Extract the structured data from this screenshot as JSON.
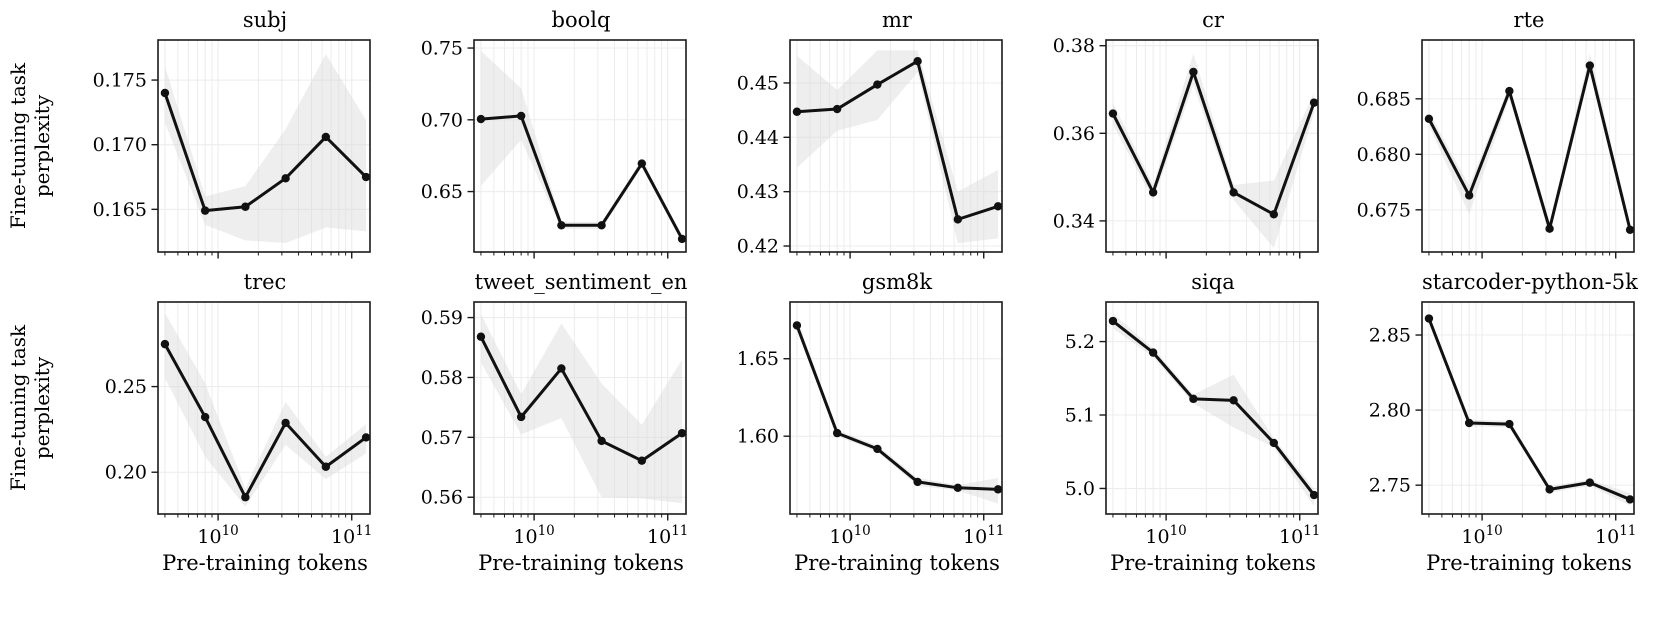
{
  "chart_data": {
    "type": "line",
    "x_label": "Pre-training tokens",
    "y_label": "Fine-tuning task perplexity",
    "y_label_lines": [
      "Fine-tuning task",
      "perplexity"
    ],
    "x_scale": "log",
    "grid": true,
    "x": [
      4000000000.0,
      8000000000.0,
      16000000000.0,
      32000000000.0,
      64000000000.0,
      128000000000.0
    ],
    "xlim": [
      3550000000.0,
      137000000000.0
    ],
    "xtick_labels": [
      {
        "value": 10000000000.0,
        "base": "10",
        "exp": "10"
      },
      {
        "value": 100000000000.0,
        "base": "10",
        "exp": "11"
      }
    ],
    "colors": {
      "line": "#111111",
      "marker": "#111111",
      "band": "#d9d9d9",
      "grid": "#ececec",
      "spine": "#1a1a1a",
      "text": "#000000",
      "background": "#ffffff"
    },
    "charts": [
      {
        "title": "subj",
        "values": [
          0.174,
          0.1649,
          0.1652,
          0.1674,
          0.1706,
          0.1675
        ],
        "band_upper": [
          0.1761,
          0.166,
          0.1668,
          0.1712,
          0.177,
          0.1719
        ],
        "band_lower": [
          0.1717,
          0.1638,
          0.1626,
          0.1624,
          0.1636,
          0.1633
        ],
        "yticks": [
          "0.165",
          "0.170",
          "0.175"
        ],
        "ylim": [
          0.1617,
          0.1781
        ],
        "show_x_tick_labels": false
      },
      {
        "title": "boolq",
        "values": [
          0.7005,
          0.7027,
          0.6265,
          0.6265,
          0.6695,
          0.617
        ],
        "band_upper": [
          0.748,
          0.722,
          0.629,
          0.629,
          0.672,
          0.619
        ],
        "band_lower": [
          0.654,
          0.686,
          0.624,
          0.624,
          0.667,
          0.615
        ],
        "yticks": [
          "0.65",
          "0.70",
          "0.75"
        ],
        "ylim": [
          0.6079,
          0.7556
        ],
        "show_x_tick_labels": false
      },
      {
        "title": "mr",
        "values": [
          0.4447,
          0.4452,
          0.4497,
          0.454,
          0.4249,
          0.4273
        ],
        "band_upper": [
          0.455,
          0.4487,
          0.456,
          0.456,
          0.43,
          0.434
        ],
        "band_lower": [
          0.4344,
          0.4412,
          0.4432,
          0.452,
          0.4205,
          0.4214
        ],
        "yticks": [
          "0.42",
          "0.43",
          "0.44",
          "0.45"
        ],
        "ylim": [
          0.4189,
          0.4579
        ],
        "show_x_tick_labels": false
      },
      {
        "title": "cr",
        "values": [
          0.3645,
          0.3465,
          0.374,
          0.3465,
          0.3415,
          0.367
        ],
        "band_upper": [
          0.367,
          0.3482,
          0.3782,
          0.3482,
          0.3492,
          0.3692
        ],
        "band_lower": [
          0.362,
          0.3448,
          0.371,
          0.3448,
          0.3338,
          0.3648
        ],
        "yticks": [
          "0.34",
          "0.36",
          "0.38"
        ],
        "ylim": [
          0.3329,
          0.3813
        ],
        "show_x_tick_labels": false
      },
      {
        "title": "rte",
        "values": [
          0.6832,
          0.6763,
          0.6857,
          0.6733,
          0.688,
          0.6732
        ],
        "band_upper": [
          0.6838,
          0.6772,
          0.6862,
          0.6739,
          0.6891,
          0.6738
        ],
        "band_lower": [
          0.6826,
          0.6746,
          0.6851,
          0.6727,
          0.6874,
          0.6726
        ],
        "yticks": [
          "0.675",
          "0.680",
          "0.685"
        ],
        "ylim": [
          0.6712,
          0.6903
        ],
        "show_x_tick_labels": false
      },
      {
        "title": "trec",
        "values": [
          0.2748,
          0.2322,
          0.1854,
          0.2288,
          0.2032,
          0.2203
        ],
        "band_upper": [
          0.293,
          0.252,
          0.1905,
          0.241,
          0.209,
          0.228
        ],
        "band_lower": [
          0.255,
          0.209,
          0.18,
          0.216,
          0.196,
          0.211
        ],
        "yticks": [
          "0.20",
          "0.25"
        ],
        "ylim": [
          0.1756,
          0.2994
        ],
        "show_x_tick_labels": true
      },
      {
        "title": "tweet_sentiment_en",
        "values": [
          0.5868,
          0.5734,
          0.5815,
          0.5694,
          0.5661,
          0.5707
        ],
        "band_upper": [
          0.5906,
          0.5772,
          0.589,
          0.579,
          0.5721,
          0.583
        ],
        "band_lower": [
          0.5825,
          0.5705,
          0.5732,
          0.56,
          0.5598,
          0.559
        ],
        "yticks": [
          "0.56",
          "0.57",
          "0.58",
          "0.59"
        ],
        "ylim": [
          0.5572,
          0.5926
        ],
        "show_x_tick_labels": true
      },
      {
        "title": "gsm8k",
        "values": [
          1.6715,
          1.602,
          1.5918,
          1.5705,
          1.5667,
          1.5657
        ],
        "band_upper": [
          1.676,
          1.604,
          1.594,
          1.573,
          1.5685,
          1.573
        ],
        "band_lower": [
          1.668,
          1.6,
          1.59,
          1.568,
          1.565,
          1.5565
        ],
        "yticks": [
          "1.60",
          "1.65"
        ],
        "ylim": [
          1.5498,
          1.6866
        ],
        "show_x_tick_labels": true
      },
      {
        "title": "siqa",
        "values": [
          5.228,
          5.185,
          5.122,
          5.12,
          5.062,
          4.991
        ],
        "band_upper": [
          5.238,
          5.191,
          5.128,
          5.155,
          5.068,
          5.0
        ],
        "band_lower": [
          5.218,
          5.179,
          5.116,
          5.083,
          5.056,
          4.976
        ],
        "yticks": [
          "5.0",
          "5.1",
          "5.2"
        ],
        "ylim": [
          4.9652,
          5.2539
        ],
        "show_x_tick_labels": true
      },
      {
        "title": "starcoder-python-5k",
        "values": [
          2.861,
          2.7914,
          2.7907,
          2.7472,
          2.7517,
          2.7405
        ],
        "band_upper": [
          2.864,
          2.7936,
          2.7929,
          2.7494,
          2.7539,
          2.7445
        ],
        "band_lower": [
          2.858,
          2.7892,
          2.7885,
          2.745,
          2.7495,
          2.7365
        ],
        "yticks": [
          "2.75",
          "2.80",
          "2.85"
        ],
        "ylim": [
          2.7308,
          2.872
        ],
        "show_x_tick_labels": true
      }
    ]
  }
}
